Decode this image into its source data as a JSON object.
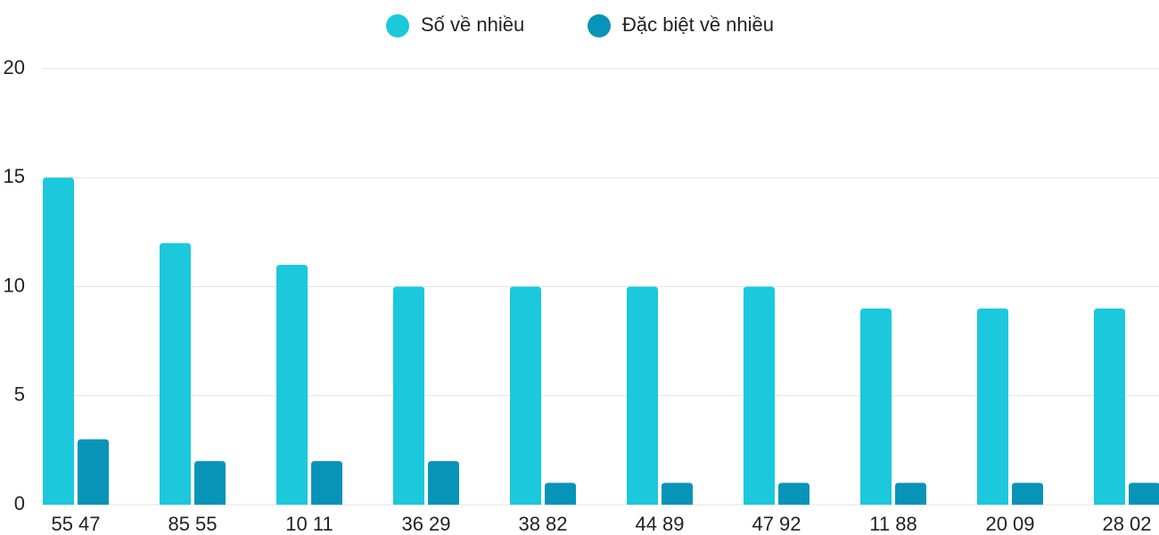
{
  "chart_data": {
    "type": "bar",
    "categories": [
      "55 47",
      "85 55",
      "10 11",
      "36 29",
      "38 82",
      "44 89",
      "47 92",
      "11 88",
      "20 09",
      "28 02"
    ],
    "series": [
      {
        "name": "Số về nhiều",
        "color": "#1bc8dc",
        "values": [
          15,
          12,
          11,
          10,
          10,
          10,
          10,
          9,
          9,
          9
        ]
      },
      {
        "name": "Đặc biệt về nhiều",
        "color": "#0894b8",
        "values": [
          3,
          2,
          2,
          2,
          1,
          1,
          1,
          1,
          1,
          1
        ]
      }
    ],
    "ylim": [
      0,
      20
    ],
    "yticks": [
      0,
      5,
      10,
      15,
      20
    ],
    "grid": true,
    "legend": "top"
  }
}
